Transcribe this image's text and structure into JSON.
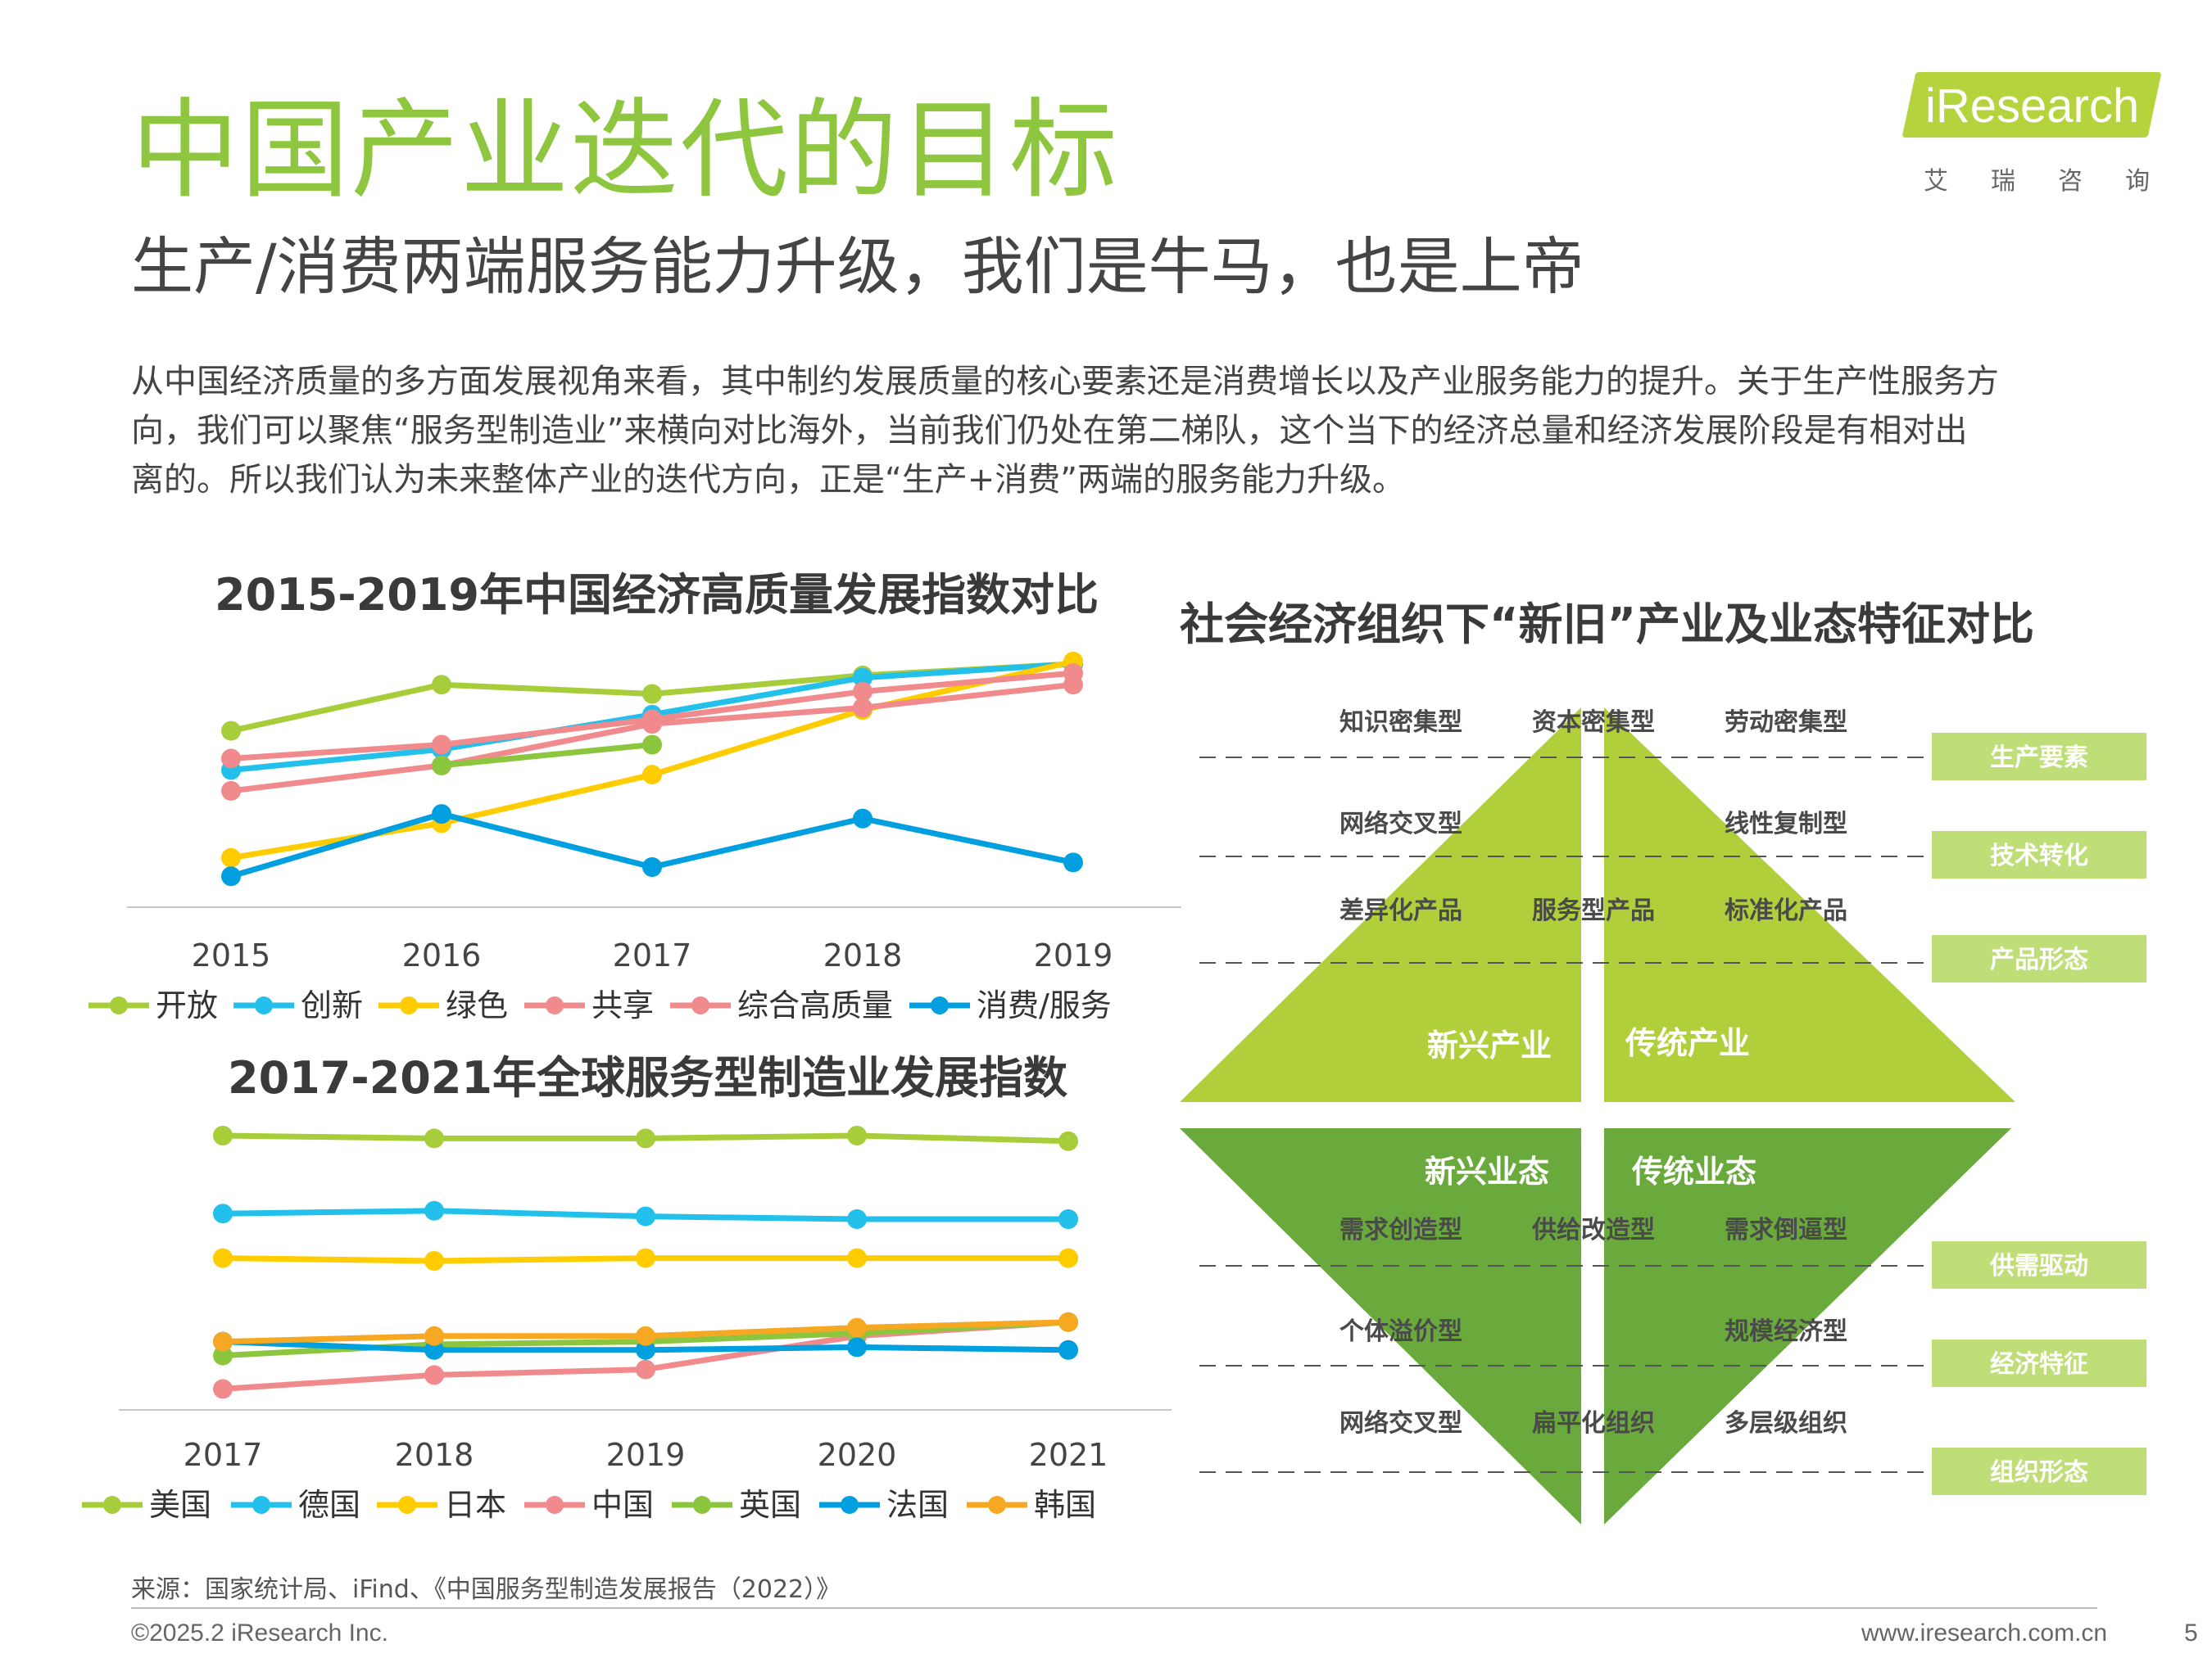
{
  "title": "中国产业迭代的目标",
  "subtitle": "生产/消费两端服务能力升级，我们是牛马，也是上帝",
  "body_lines": [
    "从中国经济质量的多方面发展视角来看，其中制约发展质量的核心要素还是消费增长以及产业服务能力的提升。关于生产性服务方",
    "向，我们可以聚焦“服务型制造业”来横向对比海外，当前我们仍处在第二梯队，这个当下的经济总量和经济发展阶段是有相对出",
    "离的。所以我们认为未来整体产业的迭代方向，正是“生产+消费”两端的服务能力升级。"
  ],
  "logo": {
    "brand": "iResearch",
    "cn": "艾瑞咨询"
  },
  "colors": {
    "title_green": "#8ec63f",
    "light_green": "#b0cf3a",
    "dark_green": "#6aaa3c",
    "label_box": "#c0de78"
  },
  "chart_data": [
    {
      "type": "line",
      "title": "2015-2019年中国经济高质量发展指数对比",
      "x": [
        "2015",
        "2016",
        "2017",
        "2018",
        "2019"
      ],
      "ylim": [
        0,
        100
      ],
      "series": [
        {
          "name": "开放",
          "color": "#a7cd3a",
          "values": [
            70,
            90,
            86,
            94,
            99
          ]
        },
        {
          "name": "创新",
          "color": "#22c0ea",
          "values": [
            53,
            62,
            77,
            93,
            99
          ]
        },
        {
          "name": "绿色",
          "color": "#ffcc00",
          "values": [
            15,
            30,
            51,
            79,
            100
          ]
        },
        {
          "name": "共享",
          "color": "#f08a8c",
          "values": [
            58,
            64,
            75,
            87,
            95
          ]
        },
        {
          "name": "综合高质量",
          "color": "#f08a8c",
          "values": [
            44,
            55,
            73,
            80,
            90
          ]
        },
        {
          "name": "消费/服务",
          "color": "#009fdf",
          "values": [
            7,
            34,
            11,
            32,
            13
          ]
        },
        {
          "name": "",
          "color": "#8cc63f",
          "values": [
            null,
            55,
            64,
            null,
            null
          ]
        }
      ],
      "legend": "bottom"
    },
    {
      "type": "line",
      "title": "2017-2021年全球服务型制造业发展指数",
      "x": [
        "2017",
        "2018",
        "2019",
        "2020",
        "2021"
      ],
      "ylim": [
        0,
        100
      ],
      "series": [
        {
          "name": "美国",
          "color": "#a7cd3a",
          "values": [
            95,
            94,
            94,
            95,
            93
          ]
        },
        {
          "name": "德国",
          "color": "#22c0ea",
          "values": [
            67,
            68,
            66,
            65,
            65
          ]
        },
        {
          "name": "日本",
          "color": "#ffcc00",
          "values": [
            51,
            50,
            51,
            51,
            51
          ]
        },
        {
          "name": "中国",
          "color": "#f08a8c",
          "values": [
            4,
            9,
            11,
            23,
            28
          ]
        },
        {
          "name": "英国",
          "color": "#8cc63f",
          "values": [
            16,
            20,
            21,
            24,
            28
          ]
        },
        {
          "name": "法国",
          "color": "#009fdf",
          "values": [
            21,
            18,
            18,
            19,
            18
          ]
        },
        {
          "name": "韩国",
          "color": "#f7a823",
          "values": [
            21,
            23,
            23,
            26,
            28
          ]
        }
      ],
      "legend": "bottom"
    }
  ],
  "right_diagram": {
    "title": "社会经济组织下“新旧”产业及业态特征对比",
    "top_rows": [
      {
        "items": [
          "知识密集型",
          "资本密集型",
          "劳动密集型"
        ],
        "label": "生产要素"
      },
      {
        "items": [
          "网络交叉型",
          "",
          "线性复制型"
        ],
        "label": "技术转化"
      },
      {
        "items": [
          "差异化产品",
          "服务型产品",
          "标准化产品"
        ],
        "label": "产品形态"
      }
    ],
    "top_left": "新兴产业",
    "top_right": "传统产业",
    "bottom_left": "新兴业态",
    "bottom_right": "传统业态",
    "bottom_rows": [
      {
        "items": [
          "需求创造型",
          "供给改造型",
          "需求倒逼型"
        ],
        "label": "供需驱动"
      },
      {
        "items": [
          "个体溢价型",
          "",
          "规模经济型"
        ],
        "label": "经济特征"
      },
      {
        "items": [
          "网络交叉型",
          "扁平化组织",
          "多层级组织"
        ],
        "label": "组织形态"
      }
    ]
  },
  "source": "来源：国家统计局、iFind、《中国服务型制造发展报告（2022）》",
  "copyright": "©2025.2 iResearch Inc.",
  "website": "www.iresearch.com.cn",
  "page": "5"
}
